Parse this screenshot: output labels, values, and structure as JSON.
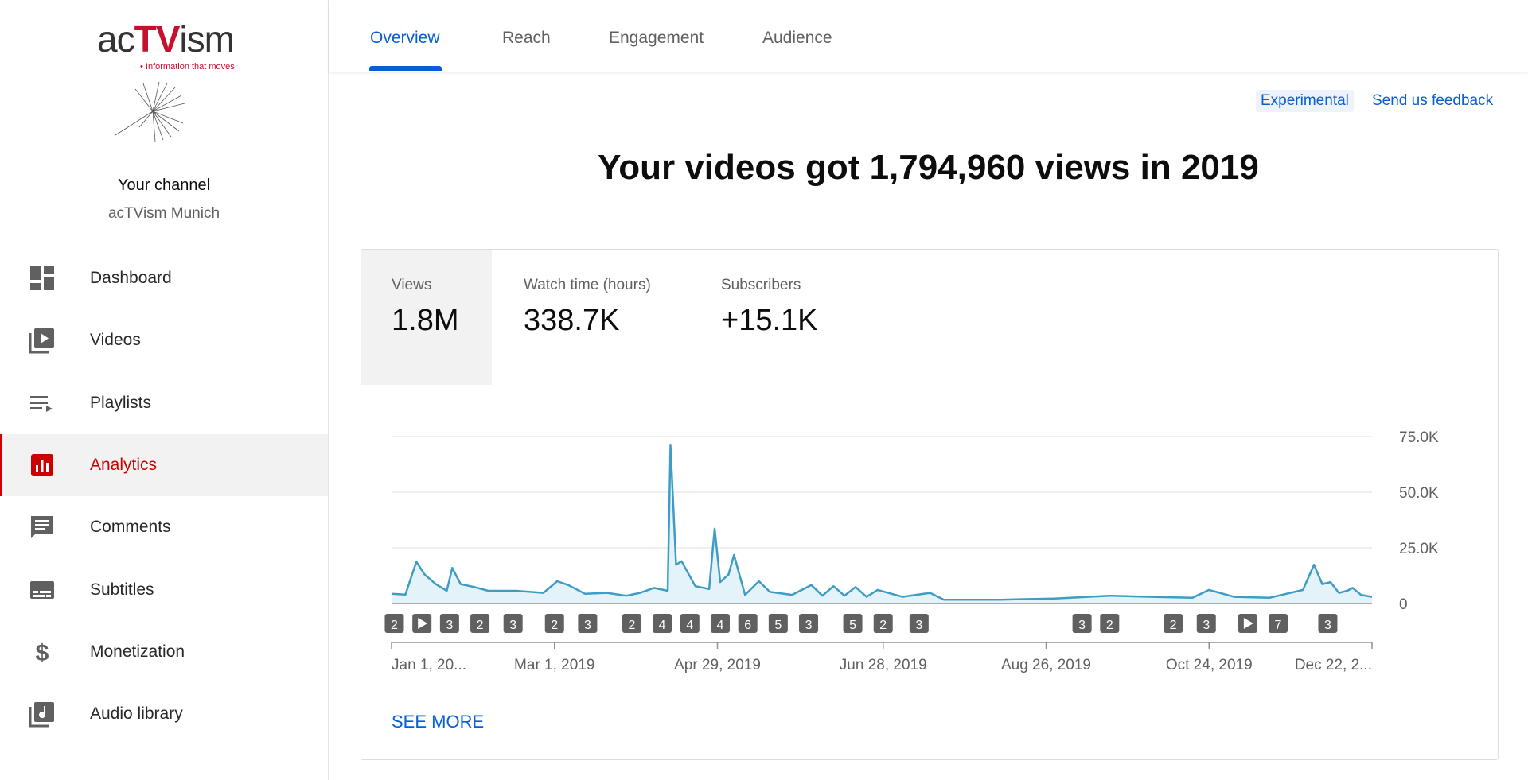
{
  "sidebar": {
    "logo": {
      "parts": [
        "ac",
        "TV",
        "ism"
      ],
      "tagline": "• Information that moves"
    },
    "channel_title": "Your channel",
    "channel_name": "acTVism Munich",
    "nav": [
      "Dashboard",
      "Videos",
      "Playlists",
      "Analytics",
      "Comments",
      "Subtitles",
      "Monetization",
      "Audio library"
    ],
    "active": 3
  },
  "tabs": {
    "items": [
      "Overview",
      "Reach",
      "Engagement",
      "Audience"
    ],
    "active": 0
  },
  "badge": "Experimental",
  "feedback": "Send us feedback",
  "headline": "Your videos got 1,794,960 views in 2019",
  "metrics": [
    {
      "label": "Views",
      "value": "1.8M"
    },
    {
      "label": "Watch time (hours)",
      "value": "338.7K"
    },
    {
      "label": "Subscribers",
      "value": "+15.1K"
    }
  ],
  "see_more": "SEE MORE",
  "chart_data": {
    "type": "line",
    "color": "#3f9cc4",
    "x": [
      0,
      5,
      9,
      12,
      16,
      20,
      22,
      25,
      30,
      35,
      45,
      55,
      60,
      64,
      70,
      78,
      85,
      90,
      95,
      100,
      101,
      103,
      105,
      110,
      115,
      117,
      119,
      122,
      124,
      128,
      133,
      137,
      145,
      152,
      156,
      160,
      164,
      168,
      172,
      176,
      185,
      195,
      200,
      220,
      240,
      260,
      275,
      290,
      296,
      305,
      318,
      330,
      334,
      337,
      340,
      343,
      346,
      348,
      351,
      355
    ],
    "values": [
      4400,
      4000,
      18800,
      13000,
      8700,
      5700,
      16000,
      8700,
      7400,
      5700,
      5700,
      4800,
      10000,
      8300,
      4400,
      4800,
      3500,
      4800,
      7000,
      5700,
      71000,
      17400,
      19000,
      7800,
      6500,
      33600,
      9600,
      13000,
      21800,
      3900,
      10000,
      5200,
      3900,
      8300,
      3500,
      7800,
      3500,
      7400,
      3000,
      6100,
      3000,
      4800,
      1700,
      1700,
      2200,
      3500,
      3000,
      2600,
      6100,
      3000,
      2600,
      6100,
      17400,
      8700,
      9600,
      4800,
      5700,
      7000,
      3900,
      3000
    ],
    "xlim": [
      0,
      355
    ],
    "xticks": [
      {
        "value": 0,
        "label": "Jan 1, 20..."
      },
      {
        "value": 59,
        "label": "Mar 1, 2019"
      },
      {
        "value": 118,
        "label": "Apr 29, 2019"
      },
      {
        "value": 178,
        "label": "Jun 28, 2019"
      },
      {
        "value": 237,
        "label": "Aug 26, 2019"
      },
      {
        "value": 296,
        "label": "Oct 24, 2019"
      },
      {
        "value": 355,
        "label": "Dec 22, 2..."
      }
    ],
    "ylim": [
      0,
      75000
    ],
    "yticks": [
      0,
      {
        "value": 25000,
        "label": "25.0K"
      },
      {
        "value": 50000,
        "label": "50.0K"
      },
      {
        "value": 75000,
        "label": "75.0K"
      }
    ],
    "grid": true,
    "markers": [
      {
        "x": 1,
        "label": "2"
      },
      {
        "x": 11,
        "kind": "play"
      },
      {
        "x": 21,
        "label": "3"
      },
      {
        "x": 32,
        "label": "2"
      },
      {
        "x": 44,
        "label": "3"
      },
      {
        "x": 59,
        "label": "2"
      },
      {
        "x": 71,
        "label": "3"
      },
      {
        "x": 87,
        "label": "2"
      },
      {
        "x": 98,
        "label": "4"
      },
      {
        "x": 108,
        "label": "4"
      },
      {
        "x": 119,
        "label": "4"
      },
      {
        "x": 129,
        "label": "6"
      },
      {
        "x": 140,
        "label": "5"
      },
      {
        "x": 151,
        "label": "3"
      },
      {
        "x": 167,
        "label": "5"
      },
      {
        "x": 178,
        "label": "2"
      },
      {
        "x": 191,
        "label": "3"
      },
      {
        "x": 250,
        "label": "3"
      },
      {
        "x": 260,
        "label": "2"
      },
      {
        "x": 283,
        "label": "2"
      },
      {
        "x": 295,
        "label": "3"
      },
      {
        "x": 310,
        "kind": "play"
      },
      {
        "x": 321,
        "label": "7"
      },
      {
        "x": 339,
        "label": "3"
      }
    ]
  }
}
